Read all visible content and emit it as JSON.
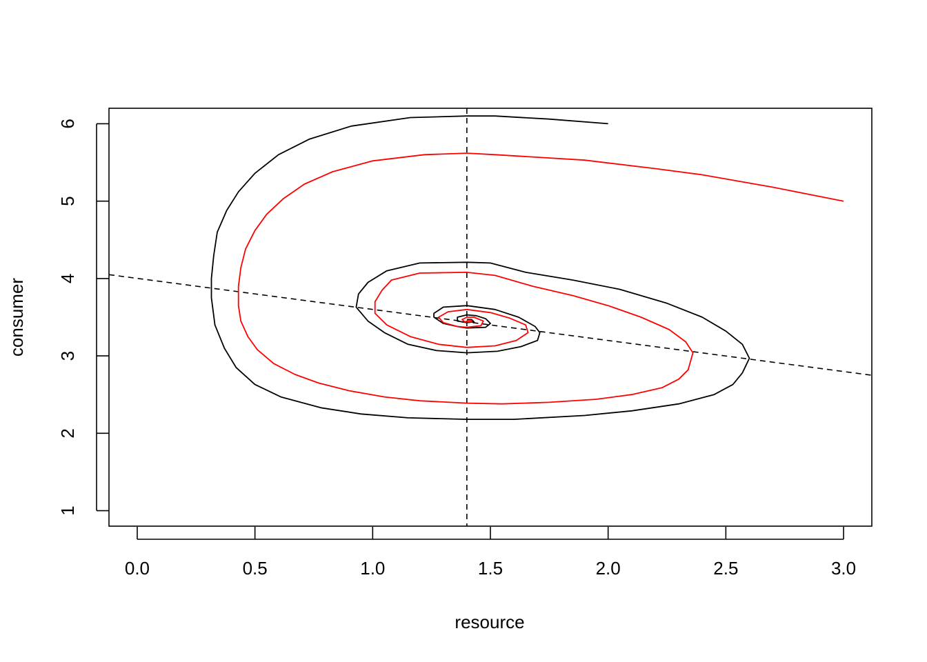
{
  "chart_data": {
    "type": "line",
    "title": "",
    "xlabel": "resource",
    "ylabel": "consumer",
    "xlim": [
      -0.12,
      3.12
    ],
    "ylim": [
      0.8,
      6.2
    ],
    "xticks": [
      0.0,
      0.5,
      1.0,
      1.5,
      2.0,
      2.5,
      3.0
    ],
    "xtick_labels": [
      "0.0",
      "0.5",
      "1.0",
      "1.5",
      "2.0",
      "2.5",
      "3.0"
    ],
    "yticks": [
      1,
      2,
      3,
      4,
      5,
      6
    ],
    "ytick_labels": [
      "1",
      "2",
      "3",
      "4",
      "5",
      "6"
    ],
    "grid": false,
    "reference_lines": [
      {
        "kind": "vertical",
        "x": 1.4,
        "style": "dashed",
        "color": "#000000"
      },
      {
        "kind": "line",
        "points": [
          [
            -0.12,
            4.05
          ],
          [
            3.12,
            2.75
          ]
        ],
        "style": "dashed",
        "color": "#000000"
      }
    ],
    "series": [
      {
        "color": "#000000",
        "points": [
          [
            2.0,
            6.0
          ],
          [
            1.75,
            6.06
          ],
          [
            1.52,
            6.1
          ],
          [
            1.4,
            6.1
          ],
          [
            1.16,
            6.08
          ],
          [
            0.91,
            5.97
          ],
          [
            0.73,
            5.8
          ],
          [
            0.6,
            5.6
          ],
          [
            0.5,
            5.36
          ],
          [
            0.43,
            5.12
          ],
          [
            0.38,
            4.88
          ],
          [
            0.34,
            4.6
          ],
          [
            0.325,
            4.3
          ],
          [
            0.315,
            4.0
          ],
          [
            0.315,
            3.75
          ],
          [
            0.33,
            3.4
          ],
          [
            0.37,
            3.1
          ],
          [
            0.42,
            2.85
          ],
          [
            0.5,
            2.63
          ],
          [
            0.61,
            2.47
          ],
          [
            0.78,
            2.33
          ],
          [
            0.95,
            2.25
          ],
          [
            1.15,
            2.2
          ],
          [
            1.4,
            2.18
          ],
          [
            1.6,
            2.18
          ],
          [
            1.9,
            2.23
          ],
          [
            2.1,
            2.29
          ],
          [
            2.3,
            2.38
          ],
          [
            2.45,
            2.5
          ],
          [
            2.53,
            2.63
          ],
          [
            2.57,
            2.78
          ],
          [
            2.6,
            2.97
          ],
          [
            2.57,
            3.15
          ],
          [
            2.5,
            3.32
          ],
          [
            2.4,
            3.5
          ],
          [
            2.25,
            3.68
          ],
          [
            2.05,
            3.86
          ],
          [
            1.85,
            3.98
          ],
          [
            1.65,
            4.08
          ],
          [
            1.5,
            4.2
          ],
          [
            1.4,
            4.21
          ],
          [
            1.2,
            4.2
          ],
          [
            1.06,
            4.1
          ],
          [
            0.98,
            3.95
          ],
          [
            0.94,
            3.8
          ],
          [
            0.93,
            3.63
          ],
          [
            0.98,
            3.45
          ],
          [
            1.05,
            3.3
          ],
          [
            1.15,
            3.15
          ],
          [
            1.27,
            3.07
          ],
          [
            1.4,
            3.04
          ],
          [
            1.53,
            3.06
          ],
          [
            1.63,
            3.12
          ],
          [
            1.7,
            3.2
          ],
          [
            1.71,
            3.3
          ],
          [
            1.69,
            3.38
          ],
          [
            1.62,
            3.5
          ],
          [
            1.52,
            3.6
          ],
          [
            1.4,
            3.65
          ],
          [
            1.3,
            3.63
          ],
          [
            1.26,
            3.55
          ],
          [
            1.26,
            3.5
          ],
          [
            1.3,
            3.42
          ],
          [
            1.36,
            3.38
          ],
          [
            1.4,
            3.36
          ],
          [
            1.48,
            3.37
          ],
          [
            1.5,
            3.42
          ],
          [
            1.48,
            3.48
          ],
          [
            1.44,
            3.52
          ],
          [
            1.4,
            3.53
          ],
          [
            1.36,
            3.5
          ],
          [
            1.36,
            3.45
          ],
          [
            1.4,
            3.43
          ],
          [
            1.43,
            3.44
          ],
          [
            1.42,
            3.47
          ],
          [
            1.4,
            3.47
          ]
        ]
      },
      {
        "color": "#ff0000",
        "points": [
          [
            3.0,
            5.0
          ],
          [
            2.7,
            5.18
          ],
          [
            2.4,
            5.34
          ],
          [
            2.2,
            5.42
          ],
          [
            1.9,
            5.53
          ],
          [
            1.52,
            5.6
          ],
          [
            1.4,
            5.62
          ],
          [
            1.22,
            5.6
          ],
          [
            1.0,
            5.52
          ],
          [
            0.83,
            5.38
          ],
          [
            0.71,
            5.22
          ],
          [
            0.62,
            5.03
          ],
          [
            0.55,
            4.83
          ],
          [
            0.5,
            4.62
          ],
          [
            0.46,
            4.38
          ],
          [
            0.44,
            4.14
          ],
          [
            0.43,
            3.9
          ],
          [
            0.43,
            3.65
          ],
          [
            0.44,
            3.45
          ],
          [
            0.47,
            3.25
          ],
          [
            0.51,
            3.08
          ],
          [
            0.58,
            2.9
          ],
          [
            0.67,
            2.76
          ],
          [
            0.77,
            2.65
          ],
          [
            0.9,
            2.55
          ],
          [
            1.05,
            2.47
          ],
          [
            1.2,
            2.42
          ],
          [
            1.4,
            2.39
          ],
          [
            1.55,
            2.38
          ],
          [
            1.75,
            2.4
          ],
          [
            1.95,
            2.44
          ],
          [
            2.1,
            2.5
          ],
          [
            2.23,
            2.59
          ],
          [
            2.3,
            2.7
          ],
          [
            2.34,
            2.82
          ],
          [
            2.36,
            3.04
          ],
          [
            2.33,
            3.18
          ],
          [
            2.26,
            3.34
          ],
          [
            2.14,
            3.5
          ],
          [
            2.0,
            3.65
          ],
          [
            1.85,
            3.78
          ],
          [
            1.68,
            3.9
          ],
          [
            1.52,
            4.04
          ],
          [
            1.4,
            4.08
          ],
          [
            1.2,
            4.07
          ],
          [
            1.08,
            3.98
          ],
          [
            1.04,
            3.85
          ],
          [
            1.01,
            3.7
          ],
          [
            1.01,
            3.55
          ],
          [
            1.06,
            3.4
          ],
          [
            1.16,
            3.25
          ],
          [
            1.28,
            3.15
          ],
          [
            1.4,
            3.11
          ],
          [
            1.52,
            3.13
          ],
          [
            1.61,
            3.2
          ],
          [
            1.66,
            3.3
          ],
          [
            1.65,
            3.4
          ],
          [
            1.58,
            3.49
          ],
          [
            1.5,
            3.56
          ],
          [
            1.4,
            3.6
          ],
          [
            1.32,
            3.57
          ],
          [
            1.28,
            3.5
          ],
          [
            1.3,
            3.43
          ],
          [
            1.36,
            3.38
          ],
          [
            1.4,
            3.37
          ],
          [
            1.46,
            3.39
          ],
          [
            1.47,
            3.45
          ],
          [
            1.43,
            3.5
          ],
          [
            1.4,
            3.5
          ],
          [
            1.38,
            3.47
          ],
          [
            1.39,
            3.44
          ],
          [
            1.42,
            3.44
          ],
          [
            1.42,
            3.46
          ],
          [
            1.4,
            3.46
          ]
        ]
      }
    ]
  }
}
